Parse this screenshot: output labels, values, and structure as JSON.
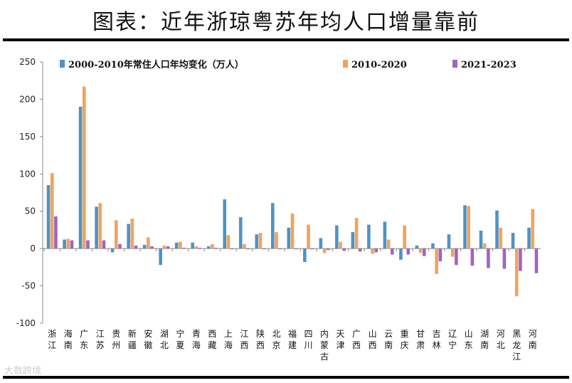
{
  "title": "图表：近年浙琼粤苏年均人口增量靠前",
  "watermark": "大数跨境",
  "chart_data": {
    "type": "bar",
    "ylim": [
      -100,
      250
    ],
    "yticks": [
      -100,
      -50,
      0,
      50,
      100,
      150,
      200,
      250
    ],
    "legend_position": "top",
    "categories": [
      "浙江",
      "海南",
      "广东",
      "江苏",
      "贵州",
      "新疆",
      "安徽",
      "湖北",
      "宁夏",
      "青海",
      "西藏",
      "上海",
      "江西",
      "陕西",
      "北京",
      "福建",
      "四川",
      "内蒙古",
      "天津",
      "广西",
      "山西",
      "云南",
      "重庆",
      "甘肃",
      "吉林",
      "辽宁",
      "山东",
      "湖南",
      "河北",
      "黑龙江",
      "河南"
    ],
    "series": [
      {
        "name": "2000-2010年常住人口年均变化（万人）",
        "color": "#4f93c2",
        "values": [
          85,
          12,
          190,
          56,
          -5,
          33,
          5,
          -22,
          8,
          8,
          3,
          66,
          42,
          19,
          61,
          28,
          -18,
          14,
          31,
          22,
          32,
          36,
          -15,
          4,
          7,
          19,
          58,
          24,
          51,
          21,
          28
        ]
      },
      {
        "name": "2010-2020",
        "color": "#f0a35e",
        "values": [
          101,
          13,
          217,
          61,
          38,
          40,
          15,
          4,
          9,
          3,
          6,
          18,
          6,
          21,
          22,
          47,
          32,
          -6,
          9,
          41,
          -7,
          12,
          31,
          -6,
          -34,
          -11,
          57,
          7,
          28,
          -64,
          53
        ]
      },
      {
        "name": "2021-2023",
        "color": "#a064c4",
        "values": [
          43,
          11,
          11,
          11,
          6,
          4,
          3,
          3,
          1,
          1,
          1,
          -1,
          -1,
          -1,
          -1,
          -1,
          -1,
          -2,
          -3,
          -4,
          -5,
          -8,
          -8,
          -10,
          -17,
          -22,
          -23,
          -26,
          -27,
          -30,
          -33
        ]
      }
    ]
  }
}
